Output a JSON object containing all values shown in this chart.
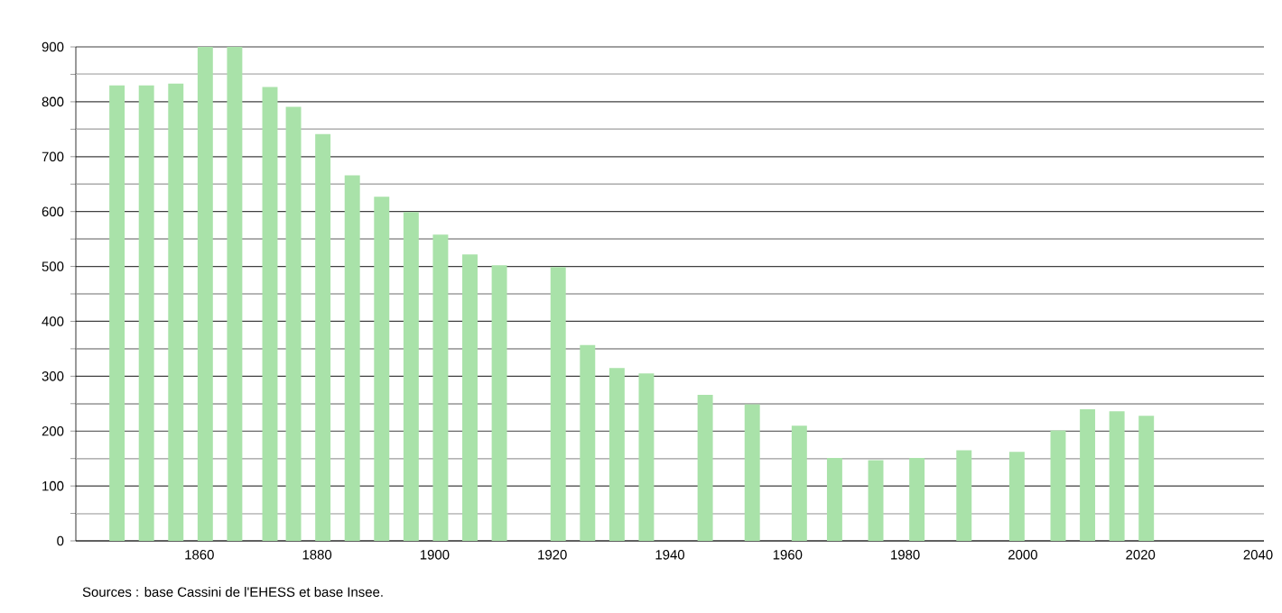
{
  "chart_data": {
    "type": "bar",
    "color": "#a9e2a9",
    "x": [
      1846,
      1851,
      1856,
      1861,
      1866,
      1872,
      1876,
      1881,
      1886,
      1891,
      1896,
      1901,
      1906,
      1911,
      1921,
      1926,
      1931,
      1936,
      1946,
      1954,
      1962,
      1968,
      1975,
      1982,
      1990,
      1999,
      2006,
      2011,
      2016,
      2021
    ],
    "values": [
      830,
      830,
      833,
      900,
      900,
      827,
      791,
      741,
      666,
      627,
      599,
      558,
      522,
      502,
      499,
      357,
      315,
      305,
      266,
      249,
      210,
      151,
      147,
      151,
      165,
      162,
      201,
      240,
      236,
      228
    ],
    "xlim": [
      1839,
      2041
    ],
    "ylim": [
      0,
      900
    ],
    "xticks": [
      1860,
      1880,
      1900,
      1920,
      1940,
      1960,
      1980,
      2000,
      2020,
      2040
    ],
    "yticks": [
      0,
      {
        "value": 50,
        "label": null
      },
      100,
      {
        "value": 150,
        "label": null
      },
      200,
      {
        "value": 250,
        "label": null
      },
      300,
      {
        "value": 350,
        "label": null
      },
      400,
      {
        "value": 450,
        "label": null
      },
      500,
      {
        "value": 550,
        "label": null
      },
      600,
      {
        "value": 650,
        "label": null
      },
      700,
      {
        "value": 750,
        "label": null
      },
      800,
      {
        "value": 850,
        "label": null
      },
      900
    ],
    "grid": "y",
    "annotations": [
      "Sources : base Cassini de l'EHESS et base Insee."
    ]
  }
}
